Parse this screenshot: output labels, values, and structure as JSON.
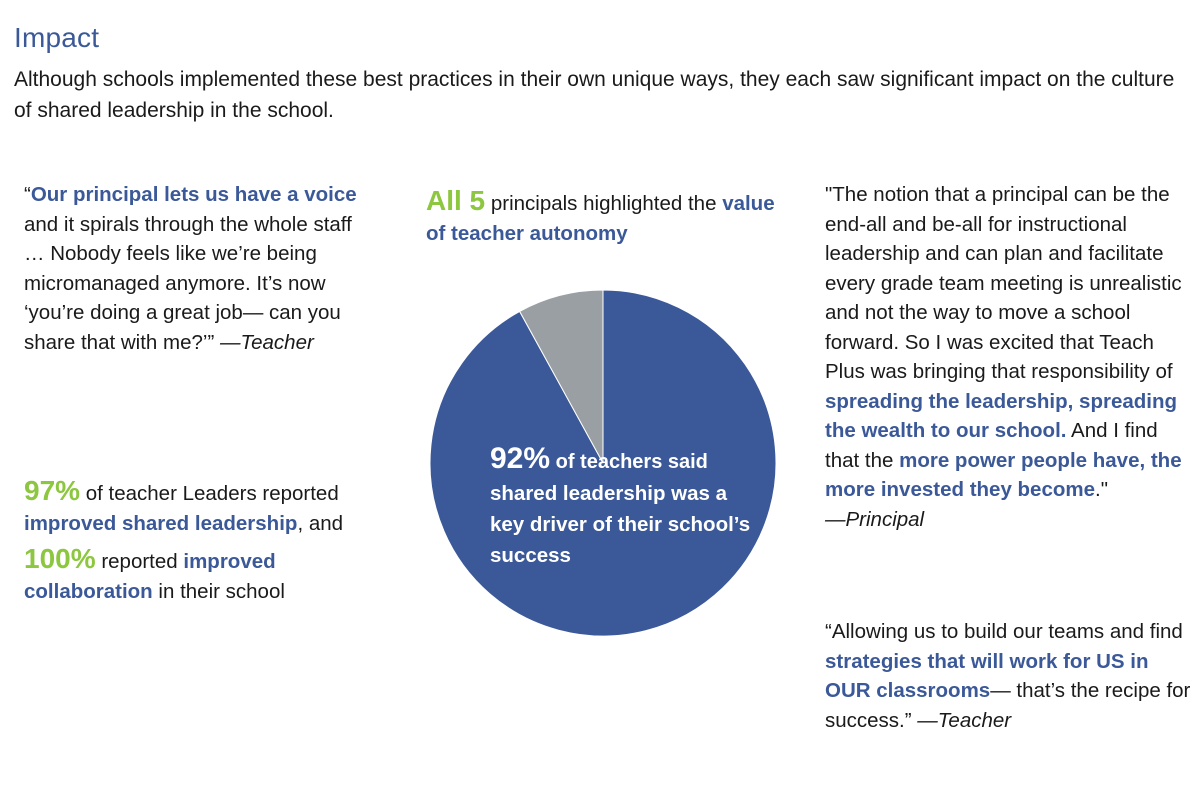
{
  "heading": "Impact",
  "intro": "Although schools implemented these best practices in their own unique ways, they each saw significant impact on the culture of shared leadership in the school.",
  "quote_teacher_1": {
    "open": "“",
    "highlight": "Our principal lets us have a voice",
    "rest": " and it spirals through the whole staff … Nobody feels like we’re being micromanaged anymore. It’s now ‘you’re doing a great job— can you share that with me?’” ",
    "attribution": "—Teacher"
  },
  "stats": {
    "stat1_value": "97%",
    "stat1_text": " of teacher Leaders reported ",
    "stat1_highlight": "improved shared leadership",
    "stat1_end": ", and",
    "stat2_value": "100%",
    "stat2_text": " reported ",
    "stat2_highlight": "improved collaboration",
    "stat2_end": " in their school"
  },
  "principals": {
    "value": "All 5",
    "text": " principals highlighted the ",
    "highlight": "value of teacher autonomy"
  },
  "pie": {
    "percent": "92%",
    "text_small": " of teachers said",
    "text_rest": "shared leadership was a key driver of their school’s success"
  },
  "quote_principal": {
    "part1": "\"The notion that a principal can be the end-all and be-all for instructional leadership and can plan and facilitate every grade team meeting is unrealistic and not the way to move a school forward. So I was excited that Teach Plus was bringing that responsibility of ",
    "highlight1": "spreading the leadership, spreading the wealth to our school.",
    "part2": " And I find that the ",
    "highlight2": "more power people have, the more invested they become",
    "part3": ".\"",
    "attribution": "—Principal"
  },
  "quote_teacher_2": {
    "part1": "“Allowing us to build our teams and find ",
    "highlight": "strategies that will work for US in OUR classrooms",
    "part2": "— that’s the recipe for success.” ",
    "attribution": "—Teacher"
  },
  "chart_data": {
    "type": "pie",
    "values": [
      92,
      8
    ],
    "colors": [
      "#3B5998",
      "#9A9FA4"
    ]
  }
}
